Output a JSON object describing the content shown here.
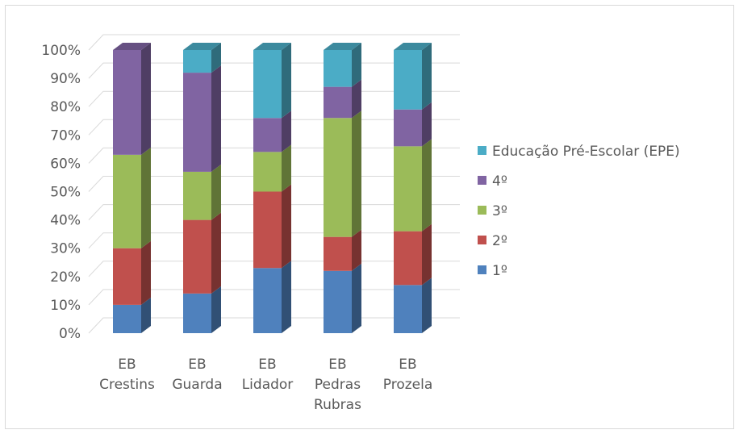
{
  "chart_data": {
    "type": "bar",
    "stacked": true,
    "percent": true,
    "three_d": true,
    "categories": [
      "EB Crestins",
      "EB Guarda",
      "EB Lidador",
      "EB Pedras Rubras",
      "EB Prozela"
    ],
    "category_lines": [
      [
        "EB",
        "Crestins"
      ],
      [
        "EB",
        "Guarda"
      ],
      [
        "EB",
        "Lidador"
      ],
      [
        "EB",
        "Pedras",
        "Rubras"
      ],
      [
        "EB",
        "Prozela"
      ]
    ],
    "series": [
      {
        "name": "1º",
        "color": "#4f81bd",
        "values": [
          10,
          14,
          23,
          22,
          17
        ]
      },
      {
        "name": "2º",
        "color": "#c0504d",
        "values": [
          20,
          26,
          27,
          12,
          19
        ]
      },
      {
        "name": "3º",
        "color": "#9bbb59",
        "values": [
          33,
          17,
          14,
          42,
          30
        ]
      },
      {
        "name": "4º",
        "color": "#8064a2",
        "values": [
          37,
          35,
          12,
          11,
          13
        ]
      },
      {
        "name": "Educação Pré-Escolar (EPE)",
        "color": "#4bacc6",
        "values": [
          0,
          8,
          24,
          13,
          21
        ]
      }
    ],
    "yticks": [
      "0%",
      "10%",
      "20%",
      "30%",
      "40%",
      "50%",
      "60%",
      "70%",
      "80%",
      "90%",
      "100%"
    ],
    "ylim": [
      0,
      100
    ],
    "grid": true,
    "legend_position": "right",
    "legend_order": [
      "Educação Pré-Escolar (EPE)",
      "4º",
      "3º",
      "2º",
      "1º"
    ]
  }
}
